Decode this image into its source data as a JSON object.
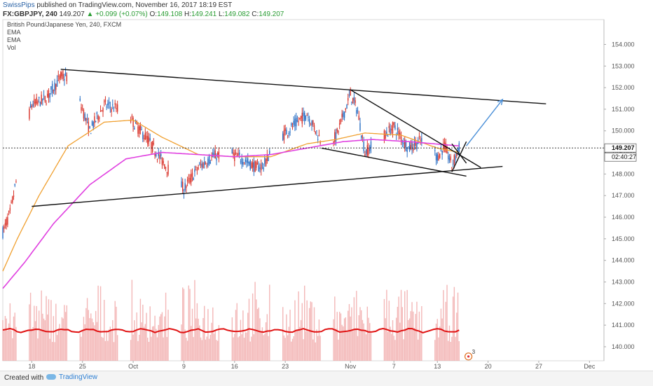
{
  "header": {
    "author": "SwissPips",
    "published": "published on TradingView.com, November 16, 2017 18:19 EST",
    "symbol": "FX:GBPJPY, 240",
    "last_price": "149.207",
    "change_arrow": "▲",
    "change": "+0.099 (+0.07%)",
    "open_label": "O:",
    "open": "149.108",
    "high_label": "H:",
    "high": "149.241",
    "low_label": "L:",
    "low": "149.082",
    "close_label": "C:",
    "close": "149.207"
  },
  "legend": {
    "instrument": "British Pound/Japanese Yen, 240, FXCM",
    "indicators": [
      "EMA",
      "EMA",
      "Vol"
    ]
  },
  "price_scale": {
    "current_price": "149.207",
    "countdown": "02:40:27"
  },
  "footer": {
    "created_with": "Created with",
    "brand": "TradingView"
  },
  "event_badge": "3",
  "colors": {
    "up_candle": "#2a6fc4",
    "down_candle": "#d9342b",
    "ema_fast": "#f0a030",
    "ema_slow": "#e040e0",
    "volume_bar": "#f0a5a5",
    "volume_ma": "#e01010",
    "trendline": "#111111",
    "projection": "#4a8fd8"
  },
  "chart_data": {
    "type": "candlestick",
    "title": "British Pound/Japanese Yen, 240, FXCM",
    "y_ticks": [
      140.0,
      141.0,
      142.0,
      143.0,
      144.0,
      145.0,
      146.0,
      147.0,
      148.0,
      149.0,
      150.0,
      151.0,
      152.0,
      153.0,
      154.0
    ],
    "ylim": [
      139.35,
      155.15
    ],
    "x_ticks": [
      "18",
      "25",
      "Oct",
      "9",
      "16",
      "23",
      "Nov",
      "7",
      "13",
      "20",
      "27",
      "Dec"
    ],
    "x_dates": [
      "2017-09-18",
      "2017-09-25",
      "2017-10-02",
      "2017-10-09",
      "2017-10-16",
      "2017-10-23",
      "2017-11-01",
      "2017-11-07",
      "2017-11-13",
      "2017-11-20",
      "2017-11-27",
      "2017-12-04"
    ],
    "date_range": [
      "2017-09-14",
      "2017-12-06"
    ],
    "anchors": [
      {
        "d": "2017-09-14",
        "p": 145.3
      },
      {
        "d": "2017-09-15",
        "p": 146.2
      },
      {
        "d": "2017-09-16",
        "p": 147.9
      },
      {
        "d": "2017-09-17",
        "p": 150.0
      },
      {
        "d": "2017-09-18",
        "p": 151.2
      },
      {
        "d": "2017-09-20",
        "p": 151.5
      },
      {
        "d": "2017-09-22",
        "p": 152.5
      },
      {
        "d": "2017-09-23",
        "p": 152.5
      },
      {
        "d": "2017-09-25",
        "p": 151.0
      },
      {
        "d": "2017-09-26",
        "p": 150.0
      },
      {
        "d": "2017-09-28",
        "p": 151.2
      },
      {
        "d": "2017-10-01",
        "p": 150.9
      },
      {
        "d": "2017-10-02",
        "p": 150.4
      },
      {
        "d": "2017-10-04",
        "p": 149.6
      },
      {
        "d": "2017-10-06",
        "p": 148.6
      },
      {
        "d": "2017-10-08",
        "p": 147.7
      },
      {
        "d": "2017-10-09",
        "p": 147.3
      },
      {
        "d": "2017-10-11",
        "p": 148.3
      },
      {
        "d": "2017-10-13",
        "p": 148.8
      },
      {
        "d": "2017-10-15",
        "p": 149.0
      },
      {
        "d": "2017-10-17",
        "p": 148.7
      },
      {
        "d": "2017-10-19",
        "p": 148.3
      },
      {
        "d": "2017-10-20",
        "p": 148.4
      },
      {
        "d": "2017-10-22",
        "p": 149.6
      },
      {
        "d": "2017-10-24",
        "p": 150.2
      },
      {
        "d": "2017-10-26",
        "p": 150.8
      },
      {
        "d": "2017-10-28",
        "p": 149.5
      },
      {
        "d": "2017-10-30",
        "p": 149.7
      },
      {
        "d": "2017-11-01",
        "p": 151.7
      },
      {
        "d": "2017-11-02",
        "p": 150.9
      },
      {
        "d": "2017-11-03",
        "p": 149.0
      },
      {
        "d": "2017-11-05",
        "p": 149.6
      },
      {
        "d": "2017-11-07",
        "p": 150.2
      },
      {
        "d": "2017-11-09",
        "p": 149.2
      },
      {
        "d": "2017-11-11",
        "p": 149.6
      },
      {
        "d": "2017-11-13",
        "p": 148.8
      },
      {
        "d": "2017-11-14",
        "p": 149.3
      },
      {
        "d": "2017-11-15",
        "p": 148.4
      },
      {
        "d": "2017-11-16",
        "p": 149.2
      }
    ],
    "ema_fast": [
      {
        "d": "2017-09-14",
        "p": 143.5
      },
      {
        "d": "2017-09-16",
        "p": 145.0
      },
      {
        "d": "2017-09-19",
        "p": 147.0
      },
      {
        "d": "2017-09-23",
        "p": 149.3
      },
      {
        "d": "2017-09-28",
        "p": 150.4
      },
      {
        "d": "2017-10-02",
        "p": 150.5
      },
      {
        "d": "2017-10-06",
        "p": 149.7
      },
      {
        "d": "2017-10-11",
        "p": 148.9
      },
      {
        "d": "2017-10-16",
        "p": 148.8
      },
      {
        "d": "2017-10-21",
        "p": 148.8
      },
      {
        "d": "2017-10-26",
        "p": 149.4
      },
      {
        "d": "2017-10-30",
        "p": 149.6
      },
      {
        "d": "2017-11-03",
        "p": 149.9
      },
      {
        "d": "2017-11-08",
        "p": 149.8
      },
      {
        "d": "2017-11-13",
        "p": 149.2
      },
      {
        "d": "2017-11-16",
        "p": 149.0
      }
    ],
    "ema_slow": [
      {
        "d": "2017-09-14",
        "p": 142.7
      },
      {
        "d": "2017-09-17",
        "p": 143.9
      },
      {
        "d": "2017-09-21",
        "p": 145.7
      },
      {
        "d": "2017-09-26",
        "p": 147.5
      },
      {
        "d": "2017-10-01",
        "p": 148.7
      },
      {
        "d": "2017-10-06",
        "p": 149.0
      },
      {
        "d": "2017-10-11",
        "p": 148.9
      },
      {
        "d": "2017-10-16",
        "p": 148.8
      },
      {
        "d": "2017-10-21",
        "p": 148.9
      },
      {
        "d": "2017-10-26",
        "p": 149.2
      },
      {
        "d": "2017-10-31",
        "p": 149.5
      },
      {
        "d": "2017-11-04",
        "p": 149.6
      },
      {
        "d": "2017-11-09",
        "p": 149.5
      },
      {
        "d": "2017-11-16",
        "p": 149.3
      }
    ],
    "volume_ma_level": 140.75,
    "trendlines": [
      {
        "from": {
          "d": "2017-09-22",
          "p": 152.85
        },
        "to": {
          "d": "2017-11-28",
          "p": 151.25
        }
      },
      {
        "from": {
          "d": "2017-09-18",
          "p": 146.5
        },
        "to": {
          "d": "2017-11-22",
          "p": 148.35
        }
      },
      {
        "from": {
          "d": "2017-11-01",
          "p": 151.9
        },
        "to": {
          "d": "2017-11-19",
          "p": 148.3
        }
      },
      {
        "from": {
          "d": "2017-10-28",
          "p": 149.2
        },
        "to": {
          "d": "2017-11-17",
          "p": 147.9
        }
      },
      {
        "from": {
          "d": "2017-11-15",
          "p": 148.1
        },
        "to": {
          "d": "2017-11-17",
          "p": 149.5
        }
      },
      {
        "from": {
          "d": "2017-11-15",
          "p": 149.4
        },
        "to": {
          "d": "2017-11-17",
          "p": 148.5
        }
      }
    ],
    "projection": {
      "from": {
        "d": "2017-11-17",
        "p": 149.3
      },
      "to": {
        "d": "2017-11-22",
        "p": 151.45
      }
    },
    "last_price": 149.207
  }
}
